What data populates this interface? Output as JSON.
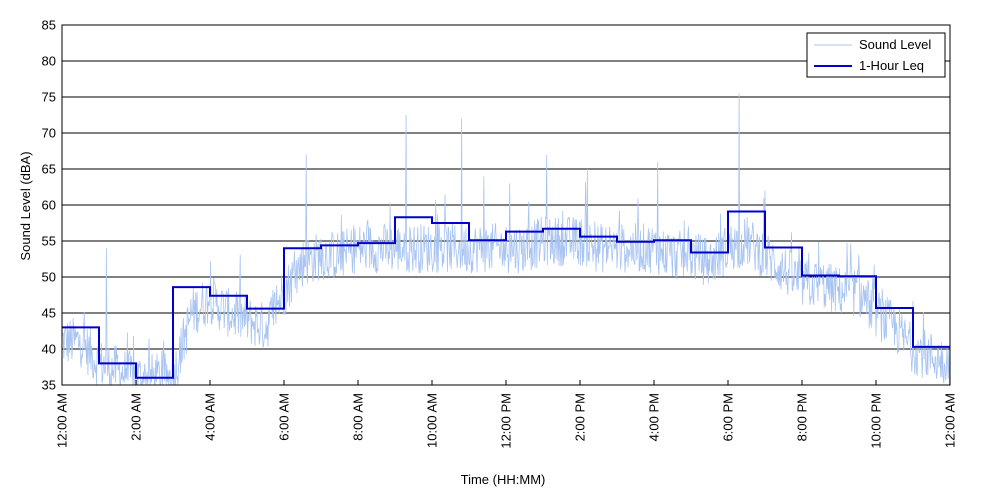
{
  "chart_data": {
    "type": "line",
    "xlabel": "Time (HH:MM)",
    "ylabel": "Sound Level (dBA)",
    "ylim": [
      35,
      85
    ],
    "yticks": [
      35,
      40,
      45,
      50,
      55,
      60,
      65,
      70,
      75,
      80,
      85
    ],
    "xlim_hours": [
      0,
      24
    ],
    "xticks": [
      {
        "hour": 0,
        "label": "12:00 AM"
      },
      {
        "hour": 2,
        "label": "2:00 AM"
      },
      {
        "hour": 4,
        "label": "4:00 AM"
      },
      {
        "hour": 6,
        "label": "6:00 AM"
      },
      {
        "hour": 8,
        "label": "8:00 AM"
      },
      {
        "hour": 10,
        "label": "10:00 AM"
      },
      {
        "hour": 12,
        "label": "12:00 PM"
      },
      {
        "hour": 14,
        "label": "2:00 PM"
      },
      {
        "hour": 16,
        "label": "4:00 PM"
      },
      {
        "hour": 18,
        "label": "6:00 PM"
      },
      {
        "hour": 20,
        "label": "8:00 PM"
      },
      {
        "hour": 22,
        "label": "10:00 PM"
      },
      {
        "hour": 24,
        "label": "12:00 AM"
      }
    ],
    "grid": "horizontal",
    "legend_position": "top-right",
    "colors": {
      "sound_level": "#a8c4f2",
      "leq": "#0000cc"
    },
    "series": [
      {
        "name": "Sound Level",
        "style": "thin-noisy",
        "x_hours": [
          0,
          0.5,
          1,
          1.5,
          2,
          2.5,
          3,
          3.5,
          4,
          4.5,
          5,
          5.5,
          6,
          6.5,
          7,
          7.5,
          8,
          8.5,
          9,
          9.5,
          10,
          10.5,
          11,
          11.5,
          12,
          12.5,
          13,
          13.5,
          14,
          14.5,
          15,
          15.5,
          16,
          16.5,
          17,
          17.5,
          18,
          18.5,
          19,
          19.5,
          20,
          20.5,
          21,
          21.5,
          22,
          22.5,
          23,
          23.5,
          24
        ],
        "values": [
          41,
          41,
          38,
          37,
          36,
          36,
          36,
          45,
          47,
          45,
          44,
          43,
          48,
          52,
          53,
          53,
          54,
          54,
          54,
          54,
          54,
          54,
          54,
          54,
          54,
          54,
          55,
          55,
          55,
          54,
          54,
          54,
          54,
          53,
          53,
          52,
          54,
          55,
          53,
          51,
          49,
          49,
          48,
          48,
          45,
          43,
          40,
          39,
          38
        ],
        "peaks": [
          [
            1.2,
            54
          ],
          [
            6.6,
            67
          ],
          [
            9.3,
            72.5
          ],
          [
            10.8,
            72
          ],
          [
            11.4,
            64
          ],
          [
            12.1,
            63
          ],
          [
            13.1,
            67
          ],
          [
            14.2,
            65
          ],
          [
            16.1,
            66
          ],
          [
            18.3,
            75.5
          ],
          [
            19.0,
            62
          ]
        ]
      },
      {
        "name": "1-Hour Leq",
        "style": "step",
        "x_hours": [
          0,
          1,
          2,
          3,
          4,
          5,
          6,
          7,
          8,
          9,
          10,
          11,
          12,
          13,
          14,
          15,
          16,
          17,
          18,
          19,
          20,
          21,
          22,
          23
        ],
        "values": [
          43,
          38,
          36,
          48.6,
          47.4,
          45.6,
          54,
          54.4,
          54.7,
          58.3,
          57.5,
          55.1,
          56.3,
          56.7,
          55.6,
          54.9,
          55.1,
          53.4,
          59.1,
          54.1,
          50.2,
          50.1,
          45.7,
          40.3
        ]
      }
    ]
  }
}
